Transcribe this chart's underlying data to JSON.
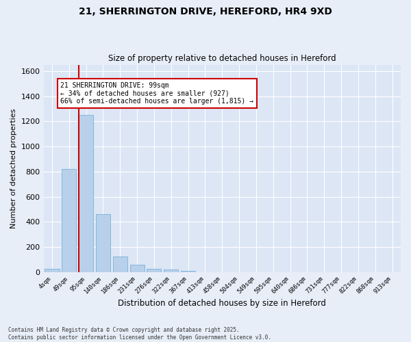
{
  "title_line1": "21, SHERRINGTON DRIVE, HEREFORD, HR4 9XD",
  "title_line2": "Size of property relative to detached houses in Hereford",
  "xlabel": "Distribution of detached houses by size in Hereford",
  "ylabel": "Number of detached properties",
  "bar_color": "#b8d0ea",
  "bar_edge_color": "#6aaad4",
  "background_color": "#dce6f5",
  "fig_background_color": "#e8eef8",
  "grid_color": "#ffffff",
  "categories": [
    "4sqm",
    "49sqm",
    "95sqm",
    "140sqm",
    "186sqm",
    "231sqm",
    "276sqm",
    "322sqm",
    "367sqm",
    "413sqm",
    "458sqm",
    "504sqm",
    "549sqm",
    "595sqm",
    "640sqm",
    "686sqm",
    "731sqm",
    "777sqm",
    "822sqm",
    "868sqm",
    "913sqm"
  ],
  "values": [
    25,
    820,
    1250,
    460,
    125,
    60,
    25,
    20,
    10,
    2,
    1,
    0,
    0,
    0,
    0,
    0,
    0,
    0,
    0,
    0,
    0
  ],
  "ylim": [
    0,
    1650
  ],
  "yticks": [
    0,
    200,
    400,
    600,
    800,
    1000,
    1200,
    1400,
    1600
  ],
  "vline_index": 1.57,
  "annotation_line1": "21 SHERRINGTON DRIVE: 99sqm",
  "annotation_line2": "← 34% of detached houses are smaller (927)",
  "annotation_line3": "66% of semi-detached houses are larger (1,815) →",
  "vline_color": "#cc0000",
  "annotation_box_edge": "#cc0000",
  "footer_line1": "Contains HM Land Registry data © Crown copyright and database right 2025.",
  "footer_line2": "Contains public sector information licensed under the Open Government Licence v3.0."
}
